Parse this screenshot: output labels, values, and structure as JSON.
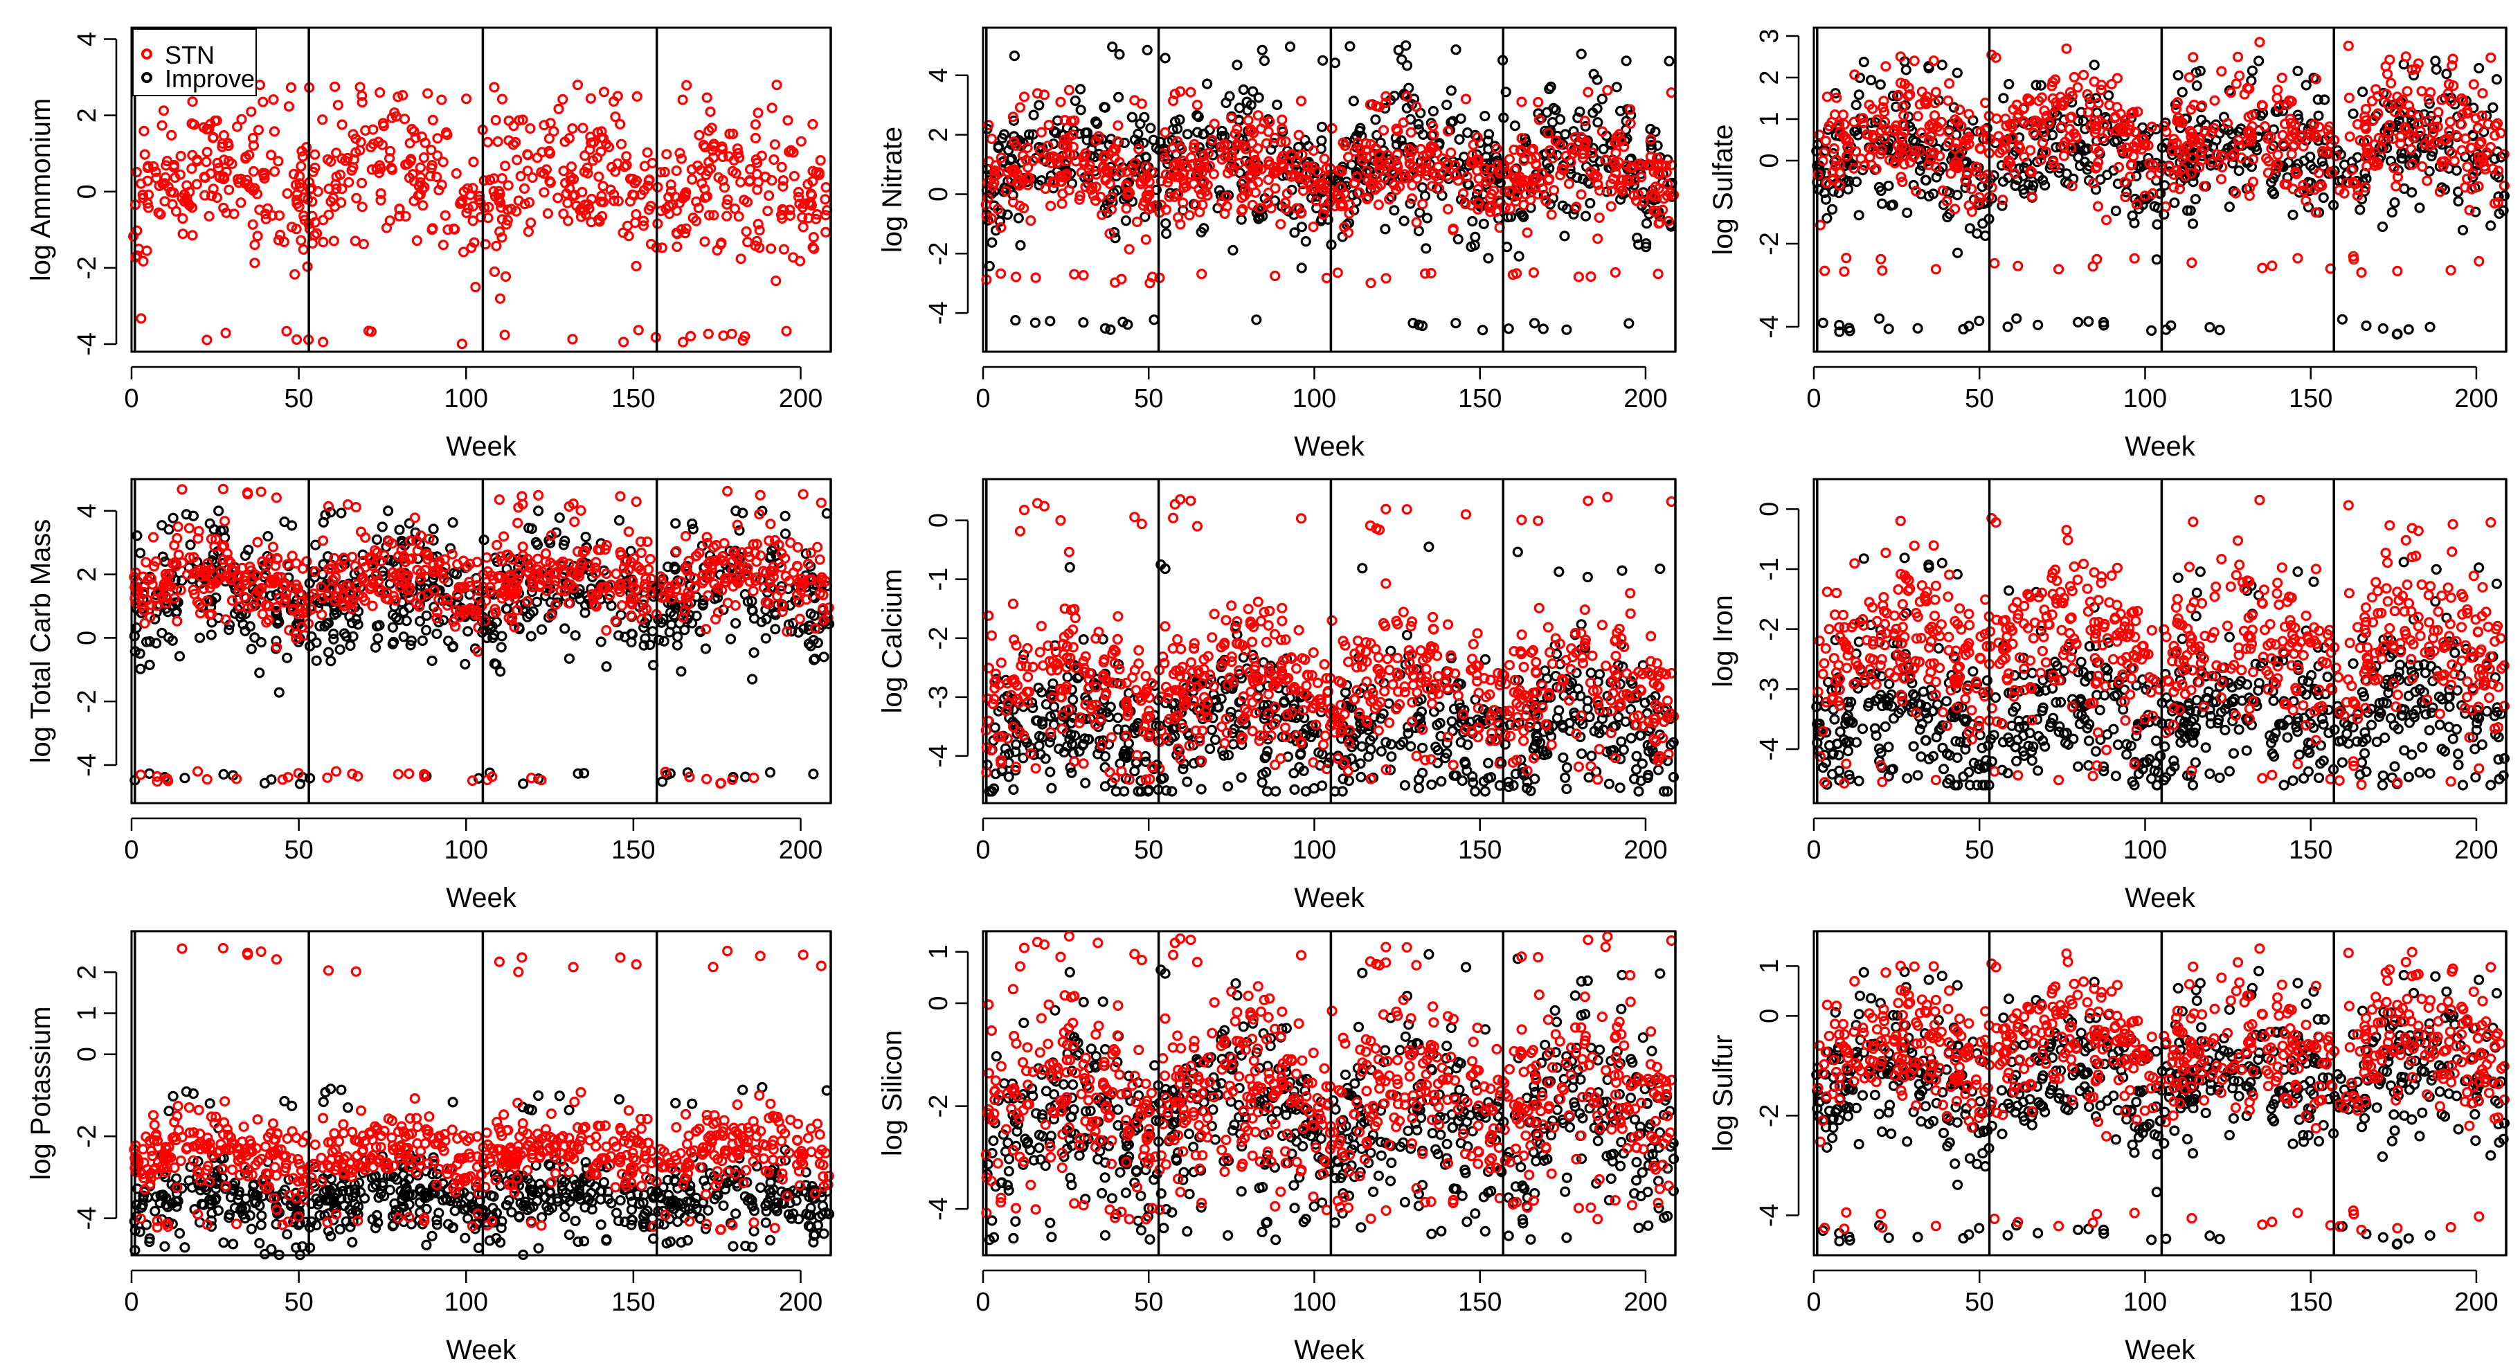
{
  "figure": {
    "title": ""
  },
  "legend": {
    "position": "top-left",
    "entries": [
      {
        "label": "STN",
        "color": "#ff0000"
      },
      {
        "label": "Improve",
        "color": "#000000"
      }
    ]
  },
  "colors": {
    "stn": "#ff0000",
    "improve": "#000000",
    "axis": "#000000"
  },
  "chart_data": [
    {
      "type": "scatter",
      "ylabel": "log Ammonium",
      "xlabel": "Week",
      "xlim": [
        0,
        209
      ],
      "ylim": [
        -4.2,
        4.3
      ],
      "xticks": [
        0,
        50,
        100,
        150,
        200
      ],
      "yticks": [
        -4,
        -2,
        0,
        2,
        4
      ],
      "year_lines": [
        1,
        53,
        105,
        157,
        209
      ],
      "series": [
        {
          "name": "STN",
          "color": "#ff0000",
          "center": 0.2,
          "spread": 1.2,
          "min": -4,
          "max": 2.8,
          "n": 700
        }
      ]
    },
    {
      "type": "scatter",
      "ylabel": "log Nitrate",
      "xlabel": "Week",
      "xlim": [
        0,
        209
      ],
      "ylim": [
        -5.3,
        5.6
      ],
      "xticks": [
        0,
        50,
        100,
        150,
        200
      ],
      "yticks": [
        -4,
        -2,
        0,
        2,
        4
      ],
      "year_lines": [
        1,
        53,
        105,
        157,
        209
      ],
      "series": [
        {
          "name": "Improve",
          "color": "#000000",
          "center": 1.0,
          "spread": 1.5,
          "min": -4.6,
          "max": 5,
          "n": 700
        },
        {
          "name": "STN",
          "color": "#ff0000",
          "center": 0.7,
          "spread": 1.1,
          "min": -3,
          "max": 3.5,
          "n": 700
        }
      ]
    },
    {
      "type": "scatter",
      "ylabel": "log Sulfate",
      "xlabel": "Week",
      "xlim": [
        0,
        209
      ],
      "ylim": [
        -4.6,
        3.2
      ],
      "xticks": [
        0,
        50,
        100,
        150,
        200
      ],
      "yticks": [
        -4,
        -2,
        0,
        1,
        2,
        3
      ],
      "year_lines": [
        1,
        53,
        105,
        157,
        209
      ],
      "series": [
        {
          "name": "Improve",
          "color": "#000000",
          "center": 0.1,
          "spread": 1.0,
          "min": -4.2,
          "max": 2.4,
          "n": 650
        },
        {
          "name": "STN",
          "color": "#ff0000",
          "center": 0.5,
          "spread": 0.9,
          "min": -2.7,
          "max": 2.9,
          "n": 650
        }
      ]
    },
    {
      "type": "scatter",
      "ylabel": "log Total Carb Mass",
      "xlabel": "Week",
      "xlim": [
        0,
        209
      ],
      "ylim": [
        -5.2,
        5.0
      ],
      "xticks": [
        0,
        50,
        100,
        150,
        200
      ],
      "yticks": [
        -4,
        -2,
        0,
        2,
        4
      ],
      "year_lines": [
        1,
        53,
        105,
        157,
        209
      ],
      "series": [
        {
          "name": "Improve",
          "color": "#000000",
          "center": 1.3,
          "spread": 1.3,
          "min": -4.6,
          "max": 4.0,
          "n": 700
        },
        {
          "name": "STN",
          "color": "#ff0000",
          "center": 1.8,
          "spread": 0.9,
          "min": -4.6,
          "max": 4.7,
          "n": 700
        }
      ]
    },
    {
      "type": "scatter",
      "ylabel": "log Calcium",
      "xlabel": "Week",
      "xlim": [
        0,
        209
      ],
      "ylim": [
        -4.8,
        0.7
      ],
      "xticks": [
        0,
        50,
        100,
        150,
        200
      ],
      "yticks": [
        -4,
        -3,
        -2,
        -1,
        0
      ],
      "year_lines": [
        1,
        53,
        105,
        157,
        209
      ],
      "series": [
        {
          "name": "Improve",
          "color": "#000000",
          "center": -3.5,
          "spread": 0.7,
          "min": -4.6,
          "max": -0.4,
          "n": 700
        },
        {
          "name": "STN",
          "color": "#ff0000",
          "center": -2.8,
          "spread": 0.8,
          "min": -4.4,
          "max": 0.4,
          "n": 700
        }
      ]
    },
    {
      "type": "scatter",
      "ylabel": "log Iron",
      "xlabel": "Week",
      "xlim": [
        0,
        209
      ],
      "ylim": [
        -4.9,
        0.5
      ],
      "xticks": [
        0,
        50,
        100,
        150,
        200
      ],
      "yticks": [
        -4,
        -3,
        -2,
        -1,
        0
      ],
      "year_lines": [
        1,
        53,
        105,
        157,
        209
      ],
      "series": [
        {
          "name": "Improve",
          "color": "#000000",
          "center": -3.4,
          "spread": 0.8,
          "min": -4.6,
          "max": -0.8,
          "n": 700
        },
        {
          "name": "STN",
          "color": "#ff0000",
          "center": -2.3,
          "spread": 0.8,
          "min": -4.6,
          "max": 0.2,
          "n": 700
        }
      ]
    },
    {
      "type": "scatter",
      "ylabel": "log Potassium",
      "xlabel": "Week",
      "xlim": [
        0,
        209
      ],
      "ylim": [
        -4.9,
        3.0
      ],
      "xticks": [
        0,
        50,
        100,
        150,
        200
      ],
      "yticks": [
        -4,
        -2,
        0,
        1,
        2
      ],
      "year_lines": [
        1,
        53,
        105,
        157,
        209
      ],
      "series": [
        {
          "name": "Improve",
          "color": "#000000",
          "center": -3.5,
          "spread": 0.6,
          "min": -4.9,
          "max": -0.8,
          "n": 700
        },
        {
          "name": "STN",
          "color": "#ff0000",
          "center": -2.4,
          "spread": 0.6,
          "min": -4.3,
          "max": 2.6,
          "n": 700
        }
      ]
    },
    {
      "type": "scatter",
      "ylabel": "log Silicon",
      "xlabel": "Week",
      "xlim": [
        0,
        209
      ],
      "ylim": [
        -4.9,
        1.4
      ],
      "xticks": [
        0,
        50,
        100,
        150,
        200
      ],
      "yticks": [
        -4,
        -2,
        0,
        1
      ],
      "year_lines": [
        1,
        53,
        105,
        157,
        209
      ],
      "series": [
        {
          "name": "Improve",
          "color": "#000000",
          "center": -2.3,
          "spread": 1.1,
          "min": -4.6,
          "max": 1.0,
          "n": 700
        },
        {
          "name": "STN",
          "color": "#ff0000",
          "center": -1.8,
          "spread": 1.2,
          "min": -4.2,
          "max": 1.3,
          "n": 700
        }
      ]
    },
    {
      "type": "scatter",
      "ylabel": "log Sulfur",
      "xlabel": "Week",
      "xlim": [
        0,
        209
      ],
      "ylim": [
        -4.8,
        1.7
      ],
      "xticks": [
        0,
        50,
        100,
        150,
        200
      ],
      "yticks": [
        -4,
        -2,
        0,
        1
      ],
      "year_lines": [
        1,
        53,
        105,
        157,
        209
      ],
      "series": [
        {
          "name": "Improve",
          "color": "#000000",
          "center": -1.3,
          "spread": 0.9,
          "min": -4.6,
          "max": 0.9,
          "n": 650
        },
        {
          "name": "STN",
          "color": "#ff0000",
          "center": -0.7,
          "spread": 0.8,
          "min": -4.3,
          "max": 1.4,
          "n": 650
        }
      ]
    }
  ]
}
